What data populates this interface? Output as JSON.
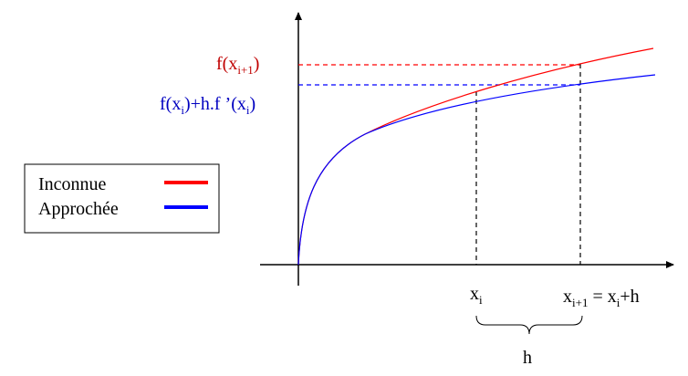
{
  "labels": {
    "f_next": [
      {
        "text": "f(x"
      },
      {
        "text": "i+1",
        "sub": true
      },
      {
        "text": ")"
      }
    ],
    "approx": [
      {
        "text": "f(x"
      },
      {
        "text": "i",
        "sub": true
      },
      {
        "text": ")+h.f ’(x"
      },
      {
        "text": "i",
        "sub": true
      },
      {
        "text": ")"
      }
    ],
    "x_i": [
      {
        "text": "x"
      },
      {
        "text": "i",
        "sub": true
      }
    ],
    "x_next": [
      {
        "text": "x"
      },
      {
        "text": "i+1",
        "sub": true
      },
      {
        "text": " = x"
      },
      {
        "text": "i",
        "sub": true
      },
      {
        "text": "+h"
      }
    ],
    "h": [
      {
        "text": "h"
      }
    ]
  },
  "legend": [
    {
      "label": "Inconnue",
      "color": "#ff0000"
    },
    {
      "label": "Approchée",
      "color": "#0000ff"
    }
  ]
}
